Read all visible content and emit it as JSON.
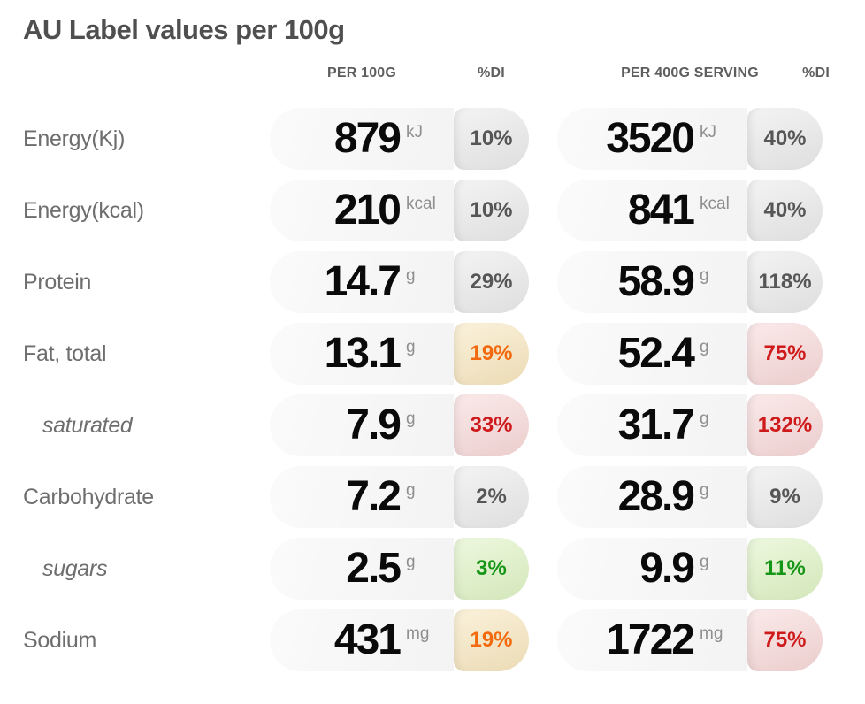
{
  "title": "AU Label values per 100g",
  "columns": {
    "per100_header": "PER 100G",
    "di_header_1": "%DI",
    "serving_header": "PER 400G SERVING",
    "di_header_2": "%DI"
  },
  "colors": {
    "pill_bg": "#F6F6F6",
    "value_text": "#0A0A0A",
    "neutral_di_bg": "#EAEAEA",
    "neutral_di_text": "#565656",
    "warn_di_bg": "#F8E7BE",
    "warn_di_text": "#F26A0D",
    "bad_di_bg": "#F8D8D8",
    "bad_di_text": "#CE1A1A",
    "good_di_bg": "#DFF3C4",
    "good_di_text": "#169616"
  },
  "rows": [
    {
      "label": "Energy(Kj)",
      "indent": false,
      "per100": {
        "value": "879",
        "unit": "kJ",
        "di": "10%",
        "di_status": "neutral"
      },
      "serving": {
        "value": "3520",
        "unit": "kJ",
        "di": "40%",
        "di_status": "neutral"
      }
    },
    {
      "label": "Energy(kcal)",
      "indent": false,
      "per100": {
        "value": "210",
        "unit": "kcal",
        "di": "10%",
        "di_status": "neutral"
      },
      "serving": {
        "value": "841",
        "unit": "kcal",
        "di": "40%",
        "di_status": "neutral"
      }
    },
    {
      "label": "Protein",
      "indent": false,
      "per100": {
        "value": "14.7",
        "unit": "g",
        "di": "29%",
        "di_status": "neutral"
      },
      "serving": {
        "value": "58.9",
        "unit": "g",
        "di": "118%",
        "di_status": "neutral"
      }
    },
    {
      "label": "Fat, total",
      "indent": false,
      "per100": {
        "value": "13.1",
        "unit": "g",
        "di": "19%",
        "di_status": "warn"
      },
      "serving": {
        "value": "52.4",
        "unit": "g",
        "di": "75%",
        "di_status": "bad"
      }
    },
    {
      "label": "saturated",
      "indent": true,
      "per100": {
        "value": "7.9",
        "unit": "g",
        "di": "33%",
        "di_status": "bad"
      },
      "serving": {
        "value": "31.7",
        "unit": "g",
        "di": "132%",
        "di_status": "bad"
      }
    },
    {
      "label": "Carbohydrate",
      "indent": false,
      "per100": {
        "value": "7.2",
        "unit": "g",
        "di": "2%",
        "di_status": "neutral"
      },
      "serving": {
        "value": "28.9",
        "unit": "g",
        "di": "9%",
        "di_status": "neutral"
      }
    },
    {
      "label": "sugars",
      "indent": true,
      "per100": {
        "value": "2.5",
        "unit": "g",
        "di": "3%",
        "di_status": "good"
      },
      "serving": {
        "value": "9.9",
        "unit": "g",
        "di": "11%",
        "di_status": "good"
      }
    },
    {
      "label": "Sodium",
      "indent": false,
      "per100": {
        "value": "431",
        "unit": "mg",
        "di": "19%",
        "di_status": "warn"
      },
      "serving": {
        "value": "1722",
        "unit": "mg",
        "di": "75%",
        "di_status": "bad"
      }
    }
  ]
}
